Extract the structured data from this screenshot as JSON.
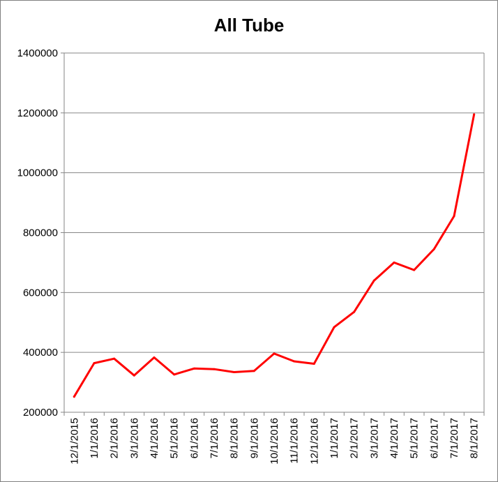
{
  "chart_data": {
    "type": "line",
    "title": "All Tube",
    "xlabel": "",
    "ylabel": "",
    "ylim": [
      200000,
      1400000
    ],
    "yticks": [
      200000,
      400000,
      600000,
      800000,
      1000000,
      1200000,
      1400000
    ],
    "ytick_labels": [
      "200000",
      "400000",
      "600000",
      "800000",
      "1000000",
      "1200000",
      "1400000"
    ],
    "grid": true,
    "legend": "none",
    "categories": [
      "12/1/2015",
      "1/1/2016",
      "2/1/2016",
      "3/1/2016",
      "4/1/2016",
      "5/1/2016",
      "6/1/2016",
      "7/1/2016",
      "8/1/2016",
      "9/1/2016",
      "10/1/2016",
      "11/1/2016",
      "12/1/2016",
      "1/1/2017",
      "2/1/2017",
      "3/1/2017",
      "4/1/2017",
      "5/1/2017",
      "6/1/2017",
      "7/1/2017",
      "8/1/2017"
    ],
    "series": [
      {
        "color": "#ff0000",
        "values": [
          252000,
          364000,
          379000,
          323000,
          383000,
          326000,
          346000,
          344000,
          334000,
          338000,
          396000,
          370000,
          362000,
          484000,
          535000,
          640000,
          700000,
          675000,
          745000,
          855000,
          1195000
        ]
      }
    ]
  }
}
